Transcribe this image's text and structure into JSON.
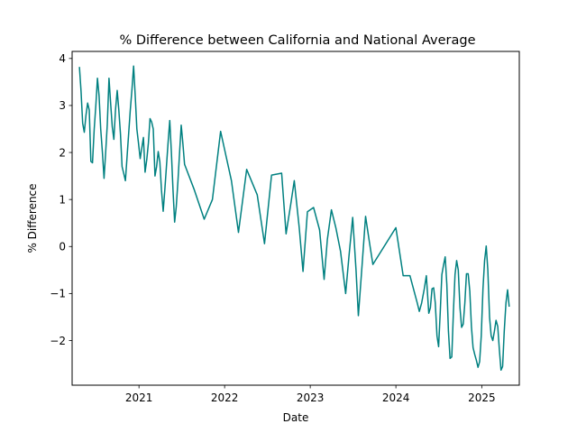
{
  "chart_data": {
    "type": "line",
    "title": "% Difference between California and National Average",
    "xlabel": "Date",
    "ylabel": "% Difference",
    "x_range": [
      "2020-03-22",
      "2025-06-10"
    ],
    "y_range": [
      -2.95,
      4.15
    ],
    "grid": false,
    "legend": "none",
    "x_ticks": [
      {
        "date": "2021-01-01",
        "label": "2021"
      },
      {
        "date": "2022-01-01",
        "label": "2022"
      },
      {
        "date": "2023-01-01",
        "label": "2023"
      },
      {
        "date": "2024-01-01",
        "label": "2024"
      },
      {
        "date": "2025-01-01",
        "label": "2025"
      }
    ],
    "y_ticks": [
      {
        "value": -2,
        "label": "−2"
      },
      {
        "value": -1,
        "label": "−1"
      },
      {
        "value": 0,
        "label": "0"
      },
      {
        "value": 1,
        "label": "1"
      },
      {
        "value": 2,
        "label": "2"
      },
      {
        "value": 3,
        "label": "3"
      },
      {
        "value": 4,
        "label": "4"
      }
    ],
    "series": [
      {
        "color": "#008080",
        "points": [
          [
            "2020-04-22",
            3.82
          ],
          [
            "2020-04-29",
            3.3
          ],
          [
            "2020-05-06",
            2.62
          ],
          [
            "2020-05-13",
            2.43
          ],
          [
            "2020-05-20",
            2.8
          ],
          [
            "2020-05-27",
            3.05
          ],
          [
            "2020-06-03",
            2.9
          ],
          [
            "2020-06-10",
            1.81
          ],
          [
            "2020-06-17",
            1.78
          ],
          [
            "2020-06-24",
            2.5
          ],
          [
            "2020-07-01",
            3.0
          ],
          [
            "2020-07-08",
            3.58
          ],
          [
            "2020-07-15",
            3.2
          ],
          [
            "2020-07-22",
            2.5
          ],
          [
            "2020-07-29",
            2.0
          ],
          [
            "2020-08-05",
            1.45
          ],
          [
            "2020-08-12",
            2.0
          ],
          [
            "2020-08-19",
            2.6
          ],
          [
            "2020-08-26",
            3.58
          ],
          [
            "2020-09-02",
            3.05
          ],
          [
            "2020-09-09",
            2.55
          ],
          [
            "2020-09-16",
            2.28
          ],
          [
            "2020-09-23",
            2.9
          ],
          [
            "2020-09-30",
            3.32
          ],
          [
            "2020-10-07",
            2.9
          ],
          [
            "2020-10-14",
            2.4
          ],
          [
            "2020-10-21",
            1.7
          ],
          [
            "2020-10-28",
            1.55
          ],
          [
            "2020-11-04",
            1.4
          ],
          [
            "2020-11-11",
            1.9
          ],
          [
            "2020-11-18",
            2.4
          ],
          [
            "2020-11-25",
            2.9
          ],
          [
            "2020-12-02",
            3.35
          ],
          [
            "2020-12-09",
            3.84
          ],
          [
            "2020-12-16",
            3.2
          ],
          [
            "2020-12-23",
            2.5
          ],
          [
            "2020-12-30",
            2.2
          ],
          [
            "2021-01-06",
            1.87
          ],
          [
            "2021-01-13",
            2.1
          ],
          [
            "2021-01-20",
            2.32
          ],
          [
            "2021-01-27",
            1.58
          ],
          [
            "2021-02-03",
            1.85
          ],
          [
            "2021-02-10",
            2.2
          ],
          [
            "2021-02-17",
            2.72
          ],
          [
            "2021-02-24",
            2.65
          ],
          [
            "2021-03-03",
            2.5
          ],
          [
            "2021-03-10",
            1.5
          ],
          [
            "2021-03-17",
            1.7
          ],
          [
            "2021-03-24",
            2.02
          ],
          [
            "2021-03-31",
            1.8
          ],
          [
            "2021-04-07",
            1.2
          ],
          [
            "2021-04-14",
            0.75
          ],
          [
            "2021-04-21",
            1.2
          ],
          [
            "2021-04-28",
            1.7
          ],
          [
            "2021-05-05",
            2.2
          ],
          [
            "2021-05-12",
            2.68
          ],
          [
            "2021-05-19",
            2.0
          ],
          [
            "2021-05-26",
            1.2
          ],
          [
            "2021-06-02",
            0.52
          ],
          [
            "2021-06-09",
            0.85
          ],
          [
            "2021-06-16",
            1.4
          ],
          [
            "2021-06-23",
            2.0
          ],
          [
            "2021-06-30",
            2.58
          ],
          [
            "2021-07-07",
            2.2
          ],
          [
            "2021-07-14",
            1.75
          ],
          [
            "2021-08-25",
            1.2
          ],
          [
            "2021-10-06",
            0.58
          ],
          [
            "2021-11-10",
            1.0
          ],
          [
            "2021-12-15",
            2.45
          ],
          [
            "2022-01-30",
            1.4
          ],
          [
            "2022-03-01",
            0.3
          ],
          [
            "2022-04-05",
            1.64
          ],
          [
            "2022-05-20",
            1.1
          ],
          [
            "2022-06-20",
            0.06
          ],
          [
            "2022-07-20",
            1.52
          ],
          [
            "2022-09-01",
            1.56
          ],
          [
            "2022-09-20",
            0.27
          ],
          [
            "2022-10-10",
            0.9
          ],
          [
            "2022-10-25",
            1.4
          ],
          [
            "2022-11-15",
            0.4
          ],
          [
            "2022-12-01",
            -0.53
          ],
          [
            "2022-12-20",
            0.74
          ],
          [
            "2023-01-15",
            0.83
          ],
          [
            "2023-02-10",
            0.35
          ],
          [
            "2023-03-01",
            -0.7
          ],
          [
            "2023-03-15",
            0.15
          ],
          [
            "2023-04-01",
            0.78
          ],
          [
            "2023-04-20",
            0.4
          ],
          [
            "2023-05-10",
            -0.1
          ],
          [
            "2023-06-01",
            -1.0
          ],
          [
            "2023-06-15",
            -0.2
          ],
          [
            "2023-07-01",
            0.62
          ],
          [
            "2023-07-15",
            -0.5
          ],
          [
            "2023-07-25",
            -1.47
          ],
          [
            "2023-08-10",
            -0.4
          ],
          [
            "2023-08-25",
            0.64
          ],
          [
            "2023-09-10",
            0.1
          ],
          [
            "2023-09-25",
            -0.38
          ],
          [
            "2024-01-01",
            0.4
          ],
          [
            "2024-02-01",
            -0.62
          ],
          [
            "2024-03-01",
            -0.62
          ],
          [
            "2024-04-01",
            -1.2
          ],
          [
            "2024-04-10",
            -1.38
          ],
          [
            "2024-04-20",
            -1.2
          ],
          [
            "2024-05-01",
            -0.9
          ],
          [
            "2024-05-10",
            -0.62
          ],
          [
            "2024-05-20",
            -1.42
          ],
          [
            "2024-05-27",
            -1.3
          ],
          [
            "2024-06-03",
            -0.9
          ],
          [
            "2024-06-10",
            -0.88
          ],
          [
            "2024-06-17",
            -1.2
          ],
          [
            "2024-06-24",
            -1.9
          ],
          [
            "2024-07-01",
            -2.13
          ],
          [
            "2024-07-08",
            -1.4
          ],
          [
            "2024-07-15",
            -0.6
          ],
          [
            "2024-07-22",
            -0.4
          ],
          [
            "2024-07-29",
            -0.22
          ],
          [
            "2024-08-05",
            -0.8
          ],
          [
            "2024-08-12",
            -1.8
          ],
          [
            "2024-08-19",
            -2.38
          ],
          [
            "2024-08-26",
            -2.35
          ],
          [
            "2024-09-02",
            -1.4
          ],
          [
            "2024-09-09",
            -0.6
          ],
          [
            "2024-09-16",
            -0.3
          ],
          [
            "2024-09-23",
            -0.5
          ],
          [
            "2024-09-30",
            -1.3
          ],
          [
            "2024-10-07",
            -1.72
          ],
          [
            "2024-10-14",
            -1.65
          ],
          [
            "2024-10-21",
            -1.2
          ],
          [
            "2024-10-28",
            -0.58
          ],
          [
            "2024-11-04",
            -0.58
          ],
          [
            "2024-11-11",
            -0.95
          ],
          [
            "2024-11-18",
            -1.7
          ],
          [
            "2024-11-25",
            -2.15
          ],
          [
            "2024-12-02",
            -2.3
          ],
          [
            "2024-12-09",
            -2.42
          ],
          [
            "2024-12-16",
            -2.57
          ],
          [
            "2024-12-23",
            -2.45
          ],
          [
            "2024-12-30",
            -1.9
          ],
          [
            "2025-01-06",
            -0.9
          ],
          [
            "2025-01-13",
            -0.3
          ],
          [
            "2025-01-20",
            0.01
          ],
          [
            "2025-01-27",
            -0.5
          ],
          [
            "2025-02-03",
            -1.5
          ],
          [
            "2025-02-10",
            -1.9
          ],
          [
            "2025-02-17",
            -2.0
          ],
          [
            "2025-02-24",
            -1.8
          ],
          [
            "2025-03-03",
            -1.57
          ],
          [
            "2025-03-10",
            -1.7
          ],
          [
            "2025-03-17",
            -2.2
          ],
          [
            "2025-03-24",
            -2.63
          ],
          [
            "2025-03-31",
            -2.55
          ],
          [
            "2025-04-07",
            -1.8
          ],
          [
            "2025-04-14",
            -1.2
          ],
          [
            "2025-04-21",
            -0.92
          ],
          [
            "2025-04-28",
            -1.28
          ]
        ]
      }
    ]
  }
}
